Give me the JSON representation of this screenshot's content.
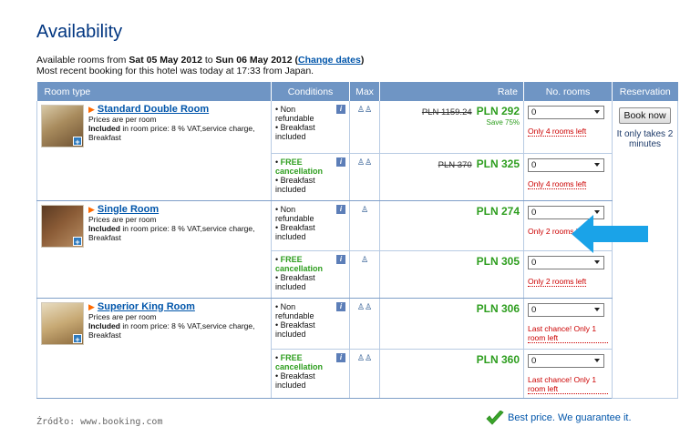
{
  "page": {
    "title": "Availability",
    "intro_line1_prefix": "Available rooms from ",
    "date_from": "Sat 05 May 2012",
    "intro_to": " to ",
    "date_to": "Sun 06 May 2012",
    "change_dates_open": " (",
    "change_dates_label": "Change dates",
    "change_dates_close": ")",
    "intro_line2": "Most recent booking for this hotel was today at 17:33 from Japan."
  },
  "table": {
    "headers": {
      "room_type": "Room type",
      "conditions": "Conditions",
      "max": "Max",
      "rate": "Rate",
      "no_rooms": "No. rooms",
      "reservation": "Reservation"
    },
    "rooms": [
      {
        "name": "Standard Double Room",
        "prices_note": "Prices are per room",
        "included_label": "Included",
        "included_text": " in room price: 8 % VAT,service charge, Breakfast",
        "offers": [
          {
            "cond_prefix": "•",
            "cond_main": "Non refundable",
            "cond_free": "",
            "breakfast": "• Breakfast included",
            "max_icon": "two-persons-icon",
            "old_price": "PLN 1159.24",
            "price": "PLN 292",
            "save": "Save 75%",
            "select_value": "0",
            "rooms_left": "Only 4 rooms left"
          },
          {
            "cond_prefix": "•",
            "cond_main": "",
            "cond_free": "FREE cancellation",
            "breakfast": "• Breakfast included",
            "max_icon": "two-persons-icon",
            "old_price": "PLN 370",
            "price": "PLN 325",
            "save": "",
            "select_value": "0",
            "rooms_left": "Only 4 rooms left"
          }
        ]
      },
      {
        "name": "Single Room",
        "prices_note": "Prices are per room",
        "included_label": "Included",
        "included_text": " in room price: 8 % VAT,service charge, Breakfast",
        "offers": [
          {
            "cond_prefix": "•",
            "cond_main": "Non refundable",
            "cond_free": "",
            "breakfast": "• Breakfast included",
            "max_icon": "one-person-icon",
            "old_price": "",
            "price": "PLN 274",
            "save": "",
            "select_value": "0",
            "rooms_left": "Only 2 rooms left"
          },
          {
            "cond_prefix": "•",
            "cond_main": "",
            "cond_free": "FREE cancellation",
            "breakfast": "• Breakfast included",
            "max_icon": "one-person-icon",
            "old_price": "",
            "price": "PLN 305",
            "save": "",
            "select_value": "0",
            "rooms_left": "Only 2 rooms left"
          }
        ]
      },
      {
        "name": "Superior King Room",
        "prices_note": "Prices are per room",
        "included_label": "Included",
        "included_text": " in room price: 8 % VAT,service charge, Breakfast",
        "offers": [
          {
            "cond_prefix": "•",
            "cond_main": "Non refundable",
            "cond_free": "",
            "breakfast": "• Breakfast included",
            "max_icon": "two-persons-icon",
            "old_price": "",
            "price": "PLN 306",
            "save": "",
            "select_value": "0",
            "rooms_left": "Last chance! Only 1 room left"
          },
          {
            "cond_prefix": "•",
            "cond_main": "",
            "cond_free": "FREE cancellation",
            "breakfast": "• Breakfast included",
            "max_icon": "two-persons-icon",
            "old_price": "",
            "price": "PLN 360",
            "save": "",
            "select_value": "0",
            "rooms_left": "Last chance! Only 1 room left"
          }
        ]
      }
    ],
    "reservation": {
      "button_label": "Book now",
      "note": "It only takes 2 minutes"
    }
  },
  "footer": {
    "source": "Źródło: www.booking.com",
    "guarantee": "Best price. We guarantee it."
  },
  "colors": {
    "header_bg": "#6f95c4",
    "link_blue": "#0055aa",
    "price_green": "#2e9e1f",
    "warning_red": "#cc0000",
    "arrow_blue": "#1aa3e8"
  }
}
